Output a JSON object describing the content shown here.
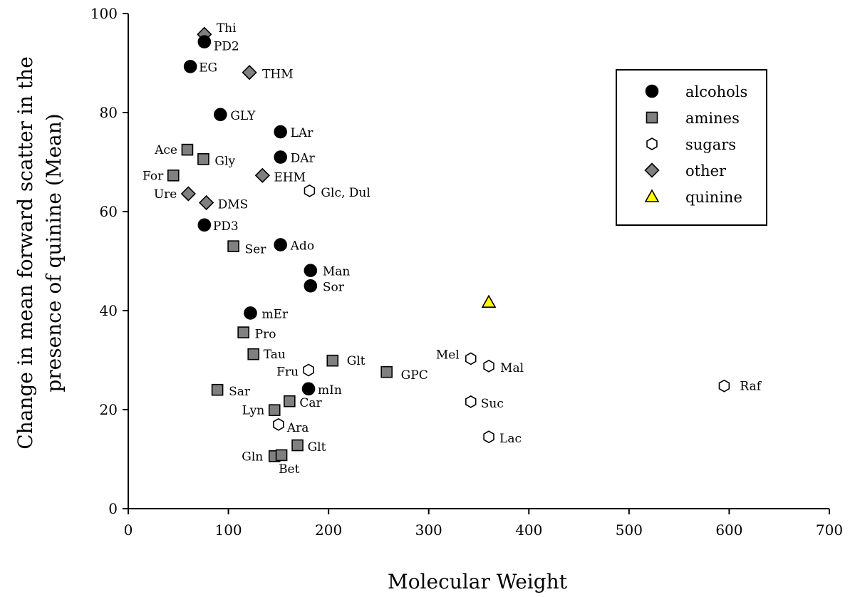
{
  "chart_data": {
    "type": "scatter",
    "title": "",
    "xlabel": "Molecular Weight",
    "ylabel_lines": [
      "Change in mean forward scatter in the",
      "presence of quinine (Mean)"
    ],
    "xlim": [
      0,
      700
    ],
    "ylim": [
      0,
      100
    ],
    "xticks": [
      0,
      100,
      200,
      300,
      400,
      500,
      600,
      700
    ],
    "yticks": [
      0,
      20,
      40,
      60,
      80,
      100
    ],
    "grid": false,
    "legend_position": "top-right",
    "colors": {
      "alcohols": "#000000",
      "amines": "#808080",
      "sugars": "#ffffff",
      "other": "#808080",
      "quinine": "#ffff00"
    },
    "series": [
      {
        "name": "alcohols",
        "marker": "circle",
        "points": [
          {
            "label": "Thi_PD2",
            "x": 76,
            "y": 94.3,
            "text": "PD2"
          },
          {
            "label": "EG",
            "x": 62,
            "y": 89.3,
            "text": "EG"
          },
          {
            "label": "GLY",
            "x": 92,
            "y": 79.6,
            "text": "GLY"
          },
          {
            "label": "LAr",
            "x": 152,
            "y": 76.1,
            "text": "LAr"
          },
          {
            "label": "DAr",
            "x": 152,
            "y": 71.0,
            "text": "DAr"
          },
          {
            "label": "PD3",
            "x": 76,
            "y": 57.3,
            "text": "PD3"
          },
          {
            "label": "Ado",
            "x": 152,
            "y": 53.3,
            "text": "Ado"
          },
          {
            "label": "Man",
            "x": 182,
            "y": 48.1,
            "text": "Man"
          },
          {
            "label": "Sor",
            "x": 182,
            "y": 45.0,
            "text": "Sor"
          },
          {
            "label": "mEr",
            "x": 122,
            "y": 39.5,
            "text": "mEr"
          },
          {
            "label": "mIn",
            "x": 180,
            "y": 24.2,
            "text": "mIn"
          }
        ]
      },
      {
        "name": "amines",
        "marker": "square",
        "points": [
          {
            "x": 59,
            "y": 72.5,
            "text": "Ace"
          },
          {
            "x": 75,
            "y": 70.6,
            "text": "Gly"
          },
          {
            "x": 45,
            "y": 67.3,
            "text": "For"
          },
          {
            "x": 105,
            "y": 53.0,
            "text": "Ser"
          },
          {
            "x": 115,
            "y": 35.6,
            "text": "Pro"
          },
          {
            "x": 125,
            "y": 31.2,
            "text": "Tau"
          },
          {
            "x": 204,
            "y": 29.9,
            "text": "Glt"
          },
          {
            "x": 258,
            "y": 27.6,
            "text": "GPC"
          },
          {
            "x": 89,
            "y": 24.0,
            "text": "Sar"
          },
          {
            "x": 161,
            "y": 21.7,
            "text": "Car"
          },
          {
            "x": 146,
            "y": 19.9,
            "text": "Lyn"
          },
          {
            "x": 169,
            "y": 12.8,
            "text": "Glt"
          },
          {
            "x": 146,
            "y": 10.6,
            "text": "Gln"
          },
          {
            "x": 153,
            "y": 10.8,
            "text": "Bet"
          }
        ]
      },
      {
        "name": "sugars",
        "marker": "hexagon",
        "points": [
          {
            "x": 181,
            "y": 64.2,
            "text": "Glc, Dul"
          },
          {
            "x": 180,
            "y": 28.0,
            "text": "Fru"
          },
          {
            "x": 342,
            "y": 30.3,
            "text": "Mel"
          },
          {
            "x": 360,
            "y": 28.8,
            "text": "Mal"
          },
          {
            "x": 342,
            "y": 21.6,
            "text": "Suc"
          },
          {
            "x": 150,
            "y": 17.0,
            "text": "Ara"
          },
          {
            "x": 360,
            "y": 14.5,
            "text": "Lac"
          },
          {
            "x": 595,
            "y": 24.8,
            "text": "Raf"
          }
        ]
      },
      {
        "name": "other",
        "marker": "diamond",
        "points": [
          {
            "x": 76,
            "y": 95.8,
            "text": "Thi"
          },
          {
            "x": 121,
            "y": 88.1,
            "text": "THM"
          },
          {
            "x": 134,
            "y": 67.3,
            "text": "EHM"
          },
          {
            "x": 60,
            "y": 63.6,
            "text": "Ure"
          },
          {
            "x": 78,
            "y": 61.8,
            "text": "DMS"
          }
        ]
      },
      {
        "name": "quinine",
        "marker": "triangle",
        "points": [
          {
            "x": 360,
            "y": 41.7,
            "text": ""
          }
        ]
      }
    ]
  }
}
